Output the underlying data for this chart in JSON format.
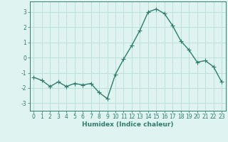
{
  "x": [
    0,
    1,
    2,
    3,
    4,
    5,
    6,
    7,
    8,
    9,
    10,
    11,
    12,
    13,
    14,
    15,
    16,
    17,
    18,
    19,
    20,
    21,
    22,
    23
  ],
  "y": [
    -1.3,
    -1.5,
    -1.9,
    -1.6,
    -1.9,
    -1.7,
    -1.8,
    -1.7,
    -2.3,
    -2.7,
    -1.1,
    -0.1,
    0.8,
    1.8,
    3.0,
    3.2,
    2.9,
    2.1,
    1.1,
    0.5,
    -0.3,
    -0.2,
    -0.6,
    -1.6
  ],
  "line_color": "#2e7d6e",
  "marker": "+",
  "marker_size": 4,
  "line_width": 1.0,
  "bg_color": "#dff4f0",
  "grid_color": "#b8ddd8",
  "xlabel": "Humidex (Indice chaleur)",
  "xlabel_fontsize": 6.5,
  "tick_fontsize": 5.5,
  "yticks": [
    -3,
    -2,
    -1,
    0,
    1,
    2,
    3
  ],
  "ylim": [
    -3.5,
    3.7
  ],
  "xlim": [
    -0.5,
    23.5
  ],
  "xticks": [
    0,
    1,
    2,
    3,
    4,
    5,
    6,
    7,
    8,
    9,
    10,
    11,
    12,
    13,
    14,
    15,
    16,
    17,
    18,
    19,
    20,
    21,
    22,
    23
  ]
}
